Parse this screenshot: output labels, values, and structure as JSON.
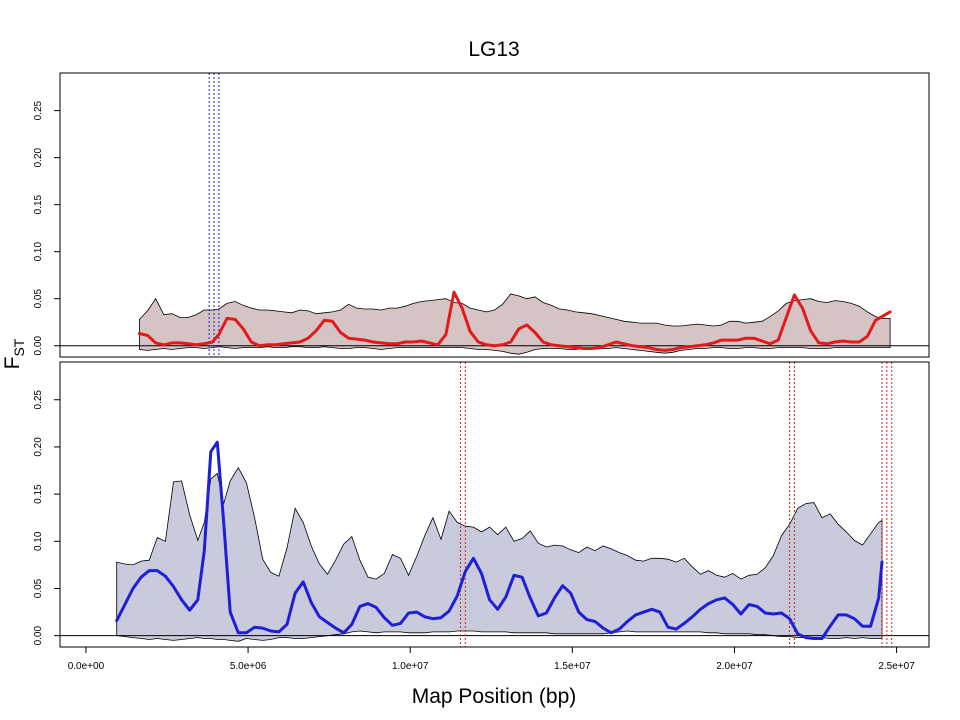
{
  "chart_data": {
    "type": "line",
    "title": "LG13",
    "xlabel": "Map Position (bp)",
    "ylabel": "F",
    "ylabel_subscript": "ST",
    "xlim": [
      -800000,
      26000000
    ],
    "ylim": [
      -0.012,
      0.29
    ],
    "x_ticks": [
      0,
      5000000,
      10000000,
      15000000,
      20000000,
      25000000
    ],
    "x_tick_labels": [
      "0.0e+00",
      "5.0e+06",
      "1.0e+07",
      "1.5e+07",
      "2.0e+07",
      "2.5e+07"
    ],
    "y_ticks": [
      0.0,
      0.05,
      0.1,
      0.15,
      0.2,
      0.25
    ],
    "y_tick_labels": [
      "0.00",
      "0.05",
      "0.10",
      "0.15",
      "0.20",
      "0.25"
    ],
    "horizontal_reference": 0,
    "panels": [
      {
        "id": "top",
        "line_color": "#e31a1c",
        "band_fill": "#d6c3c3",
        "vline_color": "#2222bb",
        "vlines": [
          3800000,
          3950000,
          4100000
        ],
        "series": [
          {
            "x": [
              1650000,
              1900000,
              2150000,
              2400000,
              2650000,
              2900000,
              3150000,
              3400000,
              3650000,
              3900000,
              4100000,
              4350000,
              4600000,
              4850000,
              5100000,
              5350000,
              5600000,
              5850000,
              6100000,
              6350000,
              6600000,
              6850000,
              7100000,
              7350000,
              7600000,
              7850000,
              8100000,
              8350000,
              8600000,
              8850000,
              9100000,
              9350000,
              9600000,
              9850000,
              10100000,
              10350000,
              10600000,
              10850000,
              11100000,
              11350000,
              11600000,
              11850000,
              12100000,
              12350000,
              12600000,
              12850000,
              13100000,
              13350000,
              13600000,
              13850000,
              14100000,
              14350000,
              14600000,
              14850000,
              15100000,
              15350000,
              15600000,
              15850000,
              16100000,
              16350000,
              16600000,
              16850000,
              17100000,
              17350000,
              17600000,
              17850000,
              18100000,
              18350000,
              18600000,
              18850000,
              19100000,
              19350000,
              19600000,
              19850000,
              20100000,
              20350000,
              20600000,
              20850000,
              21100000,
              21350000,
              21600000,
              21850000,
              22100000,
              22350000,
              22600000,
              22850000,
              23100000,
              23350000,
              23600000,
              23850000,
              24100000,
              24350000,
              24550000,
              24800000
            ],
            "y": [
              0.013,
              0.011,
              0.003,
              0.001,
              0.003,
              0.003,
              0.002,
              0.001,
              0.002,
              0.004,
              0.012,
              0.029,
              0.028,
              0.018,
              0.004,
              0.0,
              0.001,
              0.001,
              0.002,
              0.003,
              0.004,
              0.008,
              0.016,
              0.027,
              0.026,
              0.014,
              0.008,
              0.007,
              0.006,
              0.004,
              0.003,
              0.002,
              0.002,
              0.004,
              0.004,
              0.005,
              0.003,
              0.001,
              0.012,
              0.057,
              0.04,
              0.015,
              0.004,
              0.001,
              0.0,
              0.001,
              0.004,
              0.018,
              0.022,
              0.014,
              0.004,
              0.001,
              0.0,
              -0.001,
              -0.002,
              -0.003,
              -0.003,
              -0.002,
              0.001,
              0.004,
              0.002,
              0.0,
              -0.001,
              -0.002,
              -0.004,
              -0.005,
              -0.004,
              -0.002,
              -0.001,
              0.0,
              0.001,
              0.003,
              0.006,
              0.006,
              0.006,
              0.008,
              0.008,
              0.005,
              0.002,
              0.006,
              0.03,
              0.054,
              0.04,
              0.016,
              0.003,
              0.002,
              0.004,
              0.005,
              0.004,
              0.004,
              0.01,
              0.027,
              0.031,
              0.036
            ]
          }
        ],
        "band_upper": [
          0.028,
          0.037,
          0.05,
          0.033,
          0.034,
          0.03,
          0.03,
          0.033,
          0.038,
          0.038,
          0.039,
          0.045,
          0.047,
          0.043,
          0.04,
          0.038,
          0.038,
          0.037,
          0.036,
          0.035,
          0.038,
          0.037,
          0.034,
          0.035,
          0.036,
          0.038,
          0.044,
          0.04,
          0.039,
          0.039,
          0.038,
          0.04,
          0.04,
          0.042,
          0.045,
          0.047,
          0.048,
          0.049,
          0.05,
          0.046,
          0.045,
          0.04,
          0.038,
          0.036,
          0.038,
          0.044,
          0.055,
          0.053,
          0.05,
          0.052,
          0.046,
          0.043,
          0.039,
          0.038,
          0.036,
          0.035,
          0.034,
          0.032,
          0.03,
          0.028,
          0.026,
          0.025,
          0.024,
          0.024,
          0.024,
          0.022,
          0.021,
          0.021,
          0.022,
          0.023,
          0.022,
          0.021,
          0.022,
          0.026,
          0.026,
          0.024,
          0.025,
          0.026,
          0.031,
          0.037,
          0.045,
          0.048,
          0.049,
          0.05,
          0.047,
          0.046,
          0.048,
          0.047,
          0.045,
          0.042,
          0.036,
          0.031,
          0.029,
          0.029
        ],
        "band_lower": [
          -0.004,
          -0.005,
          -0.004,
          -0.003,
          -0.004,
          -0.003,
          -0.002,
          -0.002,
          -0.003,
          -0.002,
          -0.001,
          -0.002,
          -0.003,
          -0.002,
          -0.002,
          -0.002,
          -0.001,
          -0.002,
          -0.002,
          -0.001,
          -0.001,
          -0.002,
          -0.002,
          -0.001,
          -0.002,
          -0.003,
          -0.003,
          -0.002,
          -0.002,
          -0.003,
          -0.004,
          -0.003,
          -0.002,
          -0.002,
          -0.002,
          -0.002,
          -0.002,
          -0.002,
          -0.002,
          -0.002,
          -0.002,
          -0.003,
          -0.004,
          -0.004,
          -0.005,
          -0.006,
          -0.008,
          -0.009,
          -0.007,
          -0.004,
          -0.003,
          -0.003,
          -0.003,
          -0.004,
          -0.004,
          -0.003,
          -0.003,
          -0.003,
          -0.003,
          -0.002,
          -0.003,
          -0.004,
          -0.005,
          -0.006,
          -0.007,
          -0.008,
          -0.007,
          -0.005,
          -0.004,
          -0.003,
          -0.003,
          -0.002,
          -0.002,
          -0.003,
          -0.003,
          -0.002,
          -0.002,
          -0.003,
          -0.003,
          -0.002,
          -0.002,
          -0.002,
          -0.002,
          -0.003,
          -0.003,
          -0.003,
          -0.002,
          -0.002,
          -0.002,
          -0.002,
          -0.002,
          -0.002,
          -0.002,
          -0.002
        ]
      },
      {
        "id": "bottom",
        "line_color": "#1f1fd6",
        "band_fill": "#c9cbdd",
        "vline_color": "#dd2222",
        "vlines": [
          11550000,
          11700000,
          21700000,
          21850000,
          24550000,
          24700000,
          24850000
        ],
        "series": [
          {
            "x": [
              950000,
              1200000,
              1450000,
              1700000,
              1950000,
              2200000,
              2450000,
              2700000,
              2950000,
              3200000,
              3450000,
              3650000,
              3850000,
              4050000,
              4250000,
              4450000,
              4700000,
              4950000,
              5200000,
              5450000,
              5700000,
              5950000,
              6200000,
              6450000,
              6700000,
              6950000,
              7200000,
              7450000,
              7700000,
              7950000,
              8200000,
              8450000,
              8700000,
              8950000,
              9200000,
              9450000,
              9700000,
              9950000,
              10200000,
              10450000,
              10700000,
              10950000,
              11200000,
              11450000,
              11700000,
              11950000,
              12200000,
              12450000,
              12700000,
              12950000,
              13200000,
              13450000,
              13700000,
              13950000,
              14200000,
              14450000,
              14700000,
              14950000,
              15200000,
              15450000,
              15700000,
              15950000,
              16200000,
              16450000,
              16700000,
              16950000,
              17200000,
              17450000,
              17700000,
              17950000,
              18200000,
              18450000,
              18700000,
              18950000,
              19200000,
              19450000,
              19700000,
              19950000,
              20200000,
              20450000,
              20700000,
              20950000,
              21200000,
              21450000,
              21700000,
              21950000,
              22200000,
              22450000,
              22700000,
              22950000,
              23200000,
              23450000,
              23700000,
              23950000,
              24200000,
              24450000,
              24550000
            ],
            "y": [
              0.016,
              0.033,
              0.05,
              0.062,
              0.069,
              0.069,
              0.063,
              0.052,
              0.038,
              0.027,
              0.038,
              0.09,
              0.195,
              0.205,
              0.12,
              0.025,
              0.003,
              0.003,
              0.009,
              0.008,
              0.005,
              0.004,
              0.012,
              0.045,
              0.057,
              0.035,
              0.02,
              0.014,
              0.008,
              0.003,
              0.012,
              0.031,
              0.034,
              0.03,
              0.019,
              0.011,
              0.013,
              0.024,
              0.025,
              0.02,
              0.018,
              0.019,
              0.026,
              0.042,
              0.068,
              0.082,
              0.066,
              0.038,
              0.028,
              0.041,
              0.064,
              0.062,
              0.04,
              0.021,
              0.024,
              0.04,
              0.053,
              0.045,
              0.025,
              0.017,
              0.015,
              0.008,
              0.003,
              0.007,
              0.015,
              0.022,
              0.025,
              0.028,
              0.025,
              0.009,
              0.007,
              0.013,
              0.02,
              0.028,
              0.034,
              0.038,
              0.04,
              0.033,
              0.023,
              0.033,
              0.031,
              0.024,
              0.023,
              0.024,
              0.018,
              0.002,
              -0.002,
              -0.003,
              -0.003,
              0.01,
              0.022,
              0.022,
              0.018,
              0.01,
              0.01,
              0.04,
              0.078
            ]
          }
        ],
        "band_upper": [
          0.078,
          0.076,
          0.075,
          0.079,
          0.08,
          0.104,
          0.1,
          0.163,
          0.164,
          0.128,
          0.101,
          0.12,
          0.166,
          0.172,
          0.14,
          0.164,
          0.178,
          0.162,
          0.125,
          0.081,
          0.067,
          0.063,
          0.093,
          0.135,
          0.12,
          0.095,
          0.076,
          0.065,
          0.08,
          0.097,
          0.105,
          0.08,
          0.062,
          0.06,
          0.066,
          0.086,
          0.082,
          0.064,
          0.084,
          0.106,
          0.125,
          0.102,
          0.132,
          0.12,
          0.116,
          0.115,
          0.11,
          0.115,
          0.107,
          0.115,
          0.1,
          0.103,
          0.111,
          0.098,
          0.094,
          0.096,
          0.095,
          0.091,
          0.088,
          0.094,
          0.09,
          0.095,
          0.092,
          0.088,
          0.085,
          0.08,
          0.079,
          0.082,
          0.082,
          0.081,
          0.078,
          0.082,
          0.073,
          0.065,
          0.069,
          0.064,
          0.062,
          0.066,
          0.06,
          0.064,
          0.065,
          0.072,
          0.085,
          0.106,
          0.118,
          0.135,
          0.14,
          0.141,
          0.125,
          0.129,
          0.118,
          0.11,
          0.101,
          0.096,
          0.108,
          0.12,
          0.122
        ],
        "band_lower": [
          0.0,
          -0.001,
          -0.002,
          -0.003,
          -0.004,
          -0.003,
          -0.004,
          -0.005,
          -0.004,
          -0.003,
          -0.002,
          -0.003,
          -0.003,
          -0.004,
          -0.004,
          -0.005,
          -0.006,
          -0.003,
          -0.004,
          -0.005,
          -0.004,
          -0.002,
          -0.002,
          -0.003,
          -0.003,
          -0.002,
          -0.001,
          0.0,
          0.001,
          0.002,
          0.004,
          0.005,
          0.004,
          0.003,
          0.004,
          0.004,
          0.004,
          0.003,
          0.003,
          0.003,
          0.004,
          0.004,
          0.004,
          0.005,
          0.005,
          0.005,
          0.004,
          0.004,
          0.004,
          0.004,
          0.003,
          0.003,
          0.003,
          0.003,
          0.003,
          0.002,
          0.002,
          0.002,
          0.002,
          0.002,
          0.002,
          0.002,
          0.003,
          0.004,
          0.005,
          0.004,
          0.004,
          0.004,
          0.004,
          0.004,
          0.004,
          0.004,
          0.004,
          0.004,
          0.003,
          0.003,
          0.002,
          0.002,
          0.002,
          0.002,
          0.001,
          0.001,
          0.0,
          -0.001,
          -0.001,
          -0.002,
          -0.002,
          -0.003,
          -0.002,
          -0.003,
          -0.003,
          -0.002,
          -0.003,
          -0.002,
          -0.003,
          -0.003,
          -0.003
        ]
      }
    ]
  }
}
